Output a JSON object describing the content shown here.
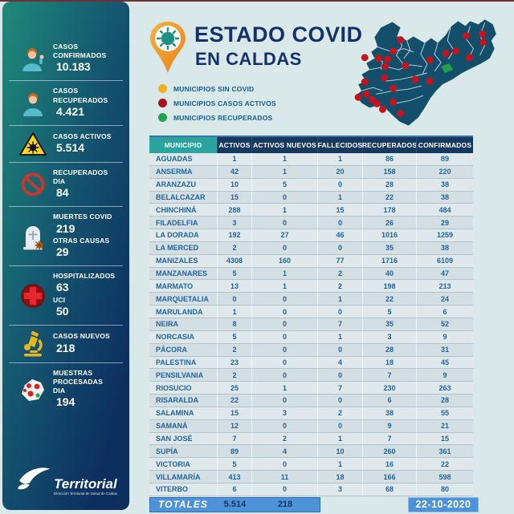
{
  "header": {
    "title": "ESTADO COVID",
    "subtitle": "EN CALDAS"
  },
  "legend": {
    "items": [
      {
        "name": "municipios-sin-covid",
        "label": "MUNICIPIOS SIN COVID",
        "color": "#f2b01e"
      },
      {
        "name": "municipios-casos-activos",
        "label": "MUNICIPIOS CASOS ACTIVOS",
        "color": "#a8111a"
      },
      {
        "name": "municipios-recuperados",
        "label": "MUNICIPIOS RECUPERADOS",
        "color": "#21a24a"
      }
    ]
  },
  "sidebar": {
    "stats": [
      {
        "icon": "person-confirmed-icon",
        "rows": [
          {
            "label": "CASOS CONFIRMADOS",
            "value": "10.183"
          }
        ]
      },
      {
        "icon": "person-recovered-icon",
        "rows": [
          {
            "label": "CASOS RECUPERADOS",
            "value": "4.421"
          }
        ]
      },
      {
        "icon": "warning-virus-icon",
        "rows": [
          {
            "label": "CASOS ACTIVOS",
            "value": "5.514"
          }
        ]
      },
      {
        "icon": "no-entry-icon",
        "rows": [
          {
            "label": "RECUPERADOS DIA",
            "value": "84"
          }
        ]
      },
      {
        "icon": "tombstone-icon",
        "rows": [
          {
            "label": "MUERTES COVID",
            "value": "219"
          },
          {
            "label": "OTRAS CAUSAS",
            "value": "29"
          }
        ]
      },
      {
        "icon": "medical-cross-icon",
        "rows": [
          {
            "label": "HOSPITALIZADOS",
            "value": "63"
          },
          {
            "label": "UCI",
            "value": "50"
          }
        ]
      },
      {
        "icon": "microscope-icon",
        "rows": [
          {
            "label": "CASOS NUEVOS",
            "value": "218"
          }
        ]
      },
      {
        "icon": "samples-map-icon",
        "rows": [
          {
            "label": "MUESTRAS PROCESADAS DIA",
            "value": "194"
          }
        ]
      }
    ]
  },
  "footer": {
    "brand": "Territorial",
    "tagline": "Dirección Territorial de Salud de Caldas"
  },
  "table": {
    "columns": [
      "MUNICIPIO",
      "ACTIVOS",
      "ACTIVOS NUEVOS",
      "FALLECIDOS",
      "RECUPERADOS",
      "CONFIRMADOS"
    ],
    "rows": [
      [
        "AGUADAS",
        "1",
        "1",
        "1",
        "86",
        "89"
      ],
      [
        "ANSERMA",
        "42",
        "1",
        "20",
        "158",
        "220"
      ],
      [
        "ARANZAZU",
        "10",
        "5",
        "0",
        "28",
        "38"
      ],
      [
        "BELALCAZAR",
        "15",
        "0",
        "1",
        "22",
        "38"
      ],
      [
        "CHINCHINÁ",
        "288",
        "1",
        "15",
        "178",
        "484"
      ],
      [
        "FILADELFIA",
        "3",
        "0",
        "0",
        "26",
        "29"
      ],
      [
        "LA DORADA",
        "192",
        "27",
        "46",
        "1016",
        "1259"
      ],
      [
        "LA MERCED",
        "2",
        "0",
        "0",
        "35",
        "38"
      ],
      [
        "MANIZALES",
        "4308",
        "160",
        "77",
        "1716",
        "6109"
      ],
      [
        "MANZANARES",
        "5",
        "1",
        "2",
        "40",
        "47"
      ],
      [
        "MARMATO",
        "13",
        "1",
        "2",
        "198",
        "213"
      ],
      [
        "MARQUETALIA",
        "0",
        "0",
        "1",
        "22",
        "24"
      ],
      [
        "MARULANDA",
        "1",
        "0",
        "0",
        "5",
        "6"
      ],
      [
        "NEIRA",
        "8",
        "0",
        "7",
        "35",
        "52"
      ],
      [
        "NORCASIA",
        "5",
        "0",
        "1",
        "3",
        "9"
      ],
      [
        "PÁCORA",
        "2",
        "0",
        "0",
        "28",
        "31"
      ],
      [
        "PALESTINA",
        "23",
        "0",
        "4",
        "18",
        "45"
      ],
      [
        "PENSILVANIA",
        "2",
        "0",
        "0",
        "7",
        "9"
      ],
      [
        "RIOSUCIO",
        "25",
        "1",
        "7",
        "230",
        "263"
      ],
      [
        "RISARALDA",
        "22",
        "0",
        "0",
        "6",
        "28"
      ],
      [
        "SALAMINA",
        "15",
        "3",
        "2",
        "38",
        "55"
      ],
      [
        "SAMANÁ",
        "12",
        "0",
        "0",
        "9",
        "21"
      ],
      [
        "SAN JOSÉ",
        "7",
        "2",
        "1",
        "7",
        "15"
      ],
      [
        "SUPÍA",
        "89",
        "4",
        "10",
        "260",
        "361"
      ],
      [
        "VICTORIA",
        "5",
        "0",
        "1",
        "16",
        "22"
      ],
      [
        "VILLAMARÍA",
        "413",
        "11",
        "18",
        "166",
        "598"
      ],
      [
        "VITERBO",
        "6",
        "0",
        "3",
        "68",
        "80"
      ]
    ],
    "totals": {
      "label": "TOTALES",
      "activos": "5.514",
      "activos_nuevos": "218"
    },
    "date": "22-10-2020"
  },
  "colors": {
    "sidebar_gradient_start": "#1f8a7a",
    "sidebar_gradient_end": "#0d2f60",
    "table_header_navy": "#16395f",
    "table_header_teal": "#2ba39e",
    "totals_blue": "#4e92d8",
    "map_fill": "#134f6b",
    "map_dot_red": "#c5121f",
    "map_dot_green": "#21a24a",
    "title_navy": "#15316b"
  }
}
